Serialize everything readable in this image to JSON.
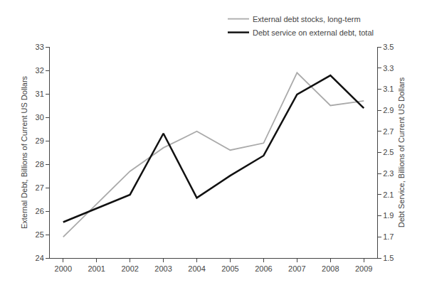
{
  "chart_data": {
    "type": "line",
    "x": [
      2000,
      2001,
      2002,
      2003,
      2004,
      2005,
      2006,
      2007,
      2008,
      2009
    ],
    "series": [
      {
        "name": "External debt stocks, long-term",
        "color": "#aaaaaa",
        "values": [
          24.9,
          26.3,
          27.7,
          28.7,
          29.4,
          28.6,
          28.9,
          31.9,
          30.5,
          30.7
        ]
      },
      {
        "name": "Debt service on external debt, total",
        "color": "#111111",
        "axis": "y2",
        "values": [
          1.84,
          1.97,
          2.1,
          2.68,
          2.07,
          2.28,
          2.47,
          3.05,
          3.23,
          2.92
        ]
      }
    ],
    "xlim": [
      1999.6,
      2009.4
    ],
    "xticks": [
      2000,
      2001,
      2002,
      2003,
      2004,
      2005,
      2006,
      2007,
      2008,
      2009
    ],
    "ylim": [
      24,
      33
    ],
    "yticks": [
      24,
      25,
      26,
      27,
      28,
      29,
      30,
      31,
      32,
      33
    ],
    "y2lim": [
      1.5,
      3.5
    ],
    "y2ticks": [
      1.5,
      1.7,
      1.9,
      2.1,
      2.3,
      2.5,
      2.7,
      2.9,
      3.1,
      3.3,
      3.5
    ],
    "ylabel": "External Debt, Billions of Current US Dollars",
    "y2label": "Debt Service, Billions of Current US Dollars",
    "legend": "upper right",
    "grid": false
  }
}
